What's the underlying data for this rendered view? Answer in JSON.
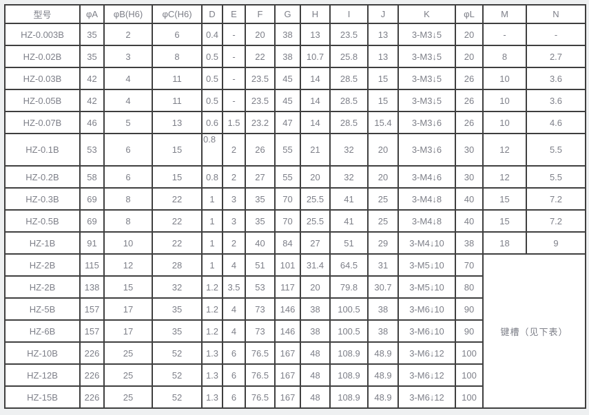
{
  "table": {
    "columns": [
      "型号",
      "φA",
      "φB(H6)",
      "φC(H6)",
      "D",
      "E",
      "F",
      "G",
      "H",
      "I",
      "J",
      "K",
      "φL",
      "M",
      "N"
    ],
    "rows": [
      [
        "HZ-0.003B",
        "35",
        "2",
        "6",
        "0.4",
        "-",
        "20",
        "38",
        "13",
        "23.5",
        "13",
        "3-M3↓5",
        "20",
        "-",
        "-"
      ],
      [
        "HZ-0.02B",
        "35",
        "3",
        "8",
        "0.5",
        "-",
        "22",
        "38",
        "10.7",
        "25.8",
        "13",
        "3-M3↓5",
        "20",
        "8",
        "2.7"
      ],
      [
        "HZ-0.03B",
        "42",
        "4",
        "11",
        "0.5",
        "-",
        "23.5",
        "45",
        "14",
        "28.5",
        "15",
        "3-M3↓5",
        "26",
        "10",
        "3.6"
      ],
      [
        "HZ-0.05B",
        "42",
        "4",
        "11",
        "0.5",
        "-",
        "23.5",
        "45",
        "14",
        "28.5",
        "15",
        "3-M3↓5",
        "26",
        "10",
        "3.6"
      ],
      [
        "HZ-0.07B",
        "46",
        "5",
        "13",
        "0.6",
        "1.5",
        "23.2",
        "47",
        "14",
        "28.5",
        "15.4",
        "3-M3↓6",
        "26",
        "10",
        "4.6"
      ],
      [
        "HZ-0.1B",
        "53",
        "6",
        "15",
        "0.8",
        "2",
        "26",
        "55",
        "21",
        "32",
        "20",
        "3-M3↓6",
        "30",
        "12",
        "5.5"
      ],
      [
        "HZ-0.2B",
        "58",
        "6",
        "15",
        "0.8",
        "2",
        "27",
        "55",
        "20",
        "32",
        "20",
        "3-M4↓6",
        "30",
        "12",
        "5.5"
      ],
      [
        "HZ-0.3B",
        "69",
        "8",
        "22",
        "1",
        "3",
        "35",
        "70",
        "25.5",
        "41",
        "25",
        "3-M4↓8",
        "40",
        "15",
        "7.2"
      ],
      [
        "HZ-0.5B",
        "69",
        "8",
        "22",
        "1",
        "3",
        "35",
        "70",
        "25.5",
        "41",
        "25",
        "3-M4↓8",
        "40",
        "15",
        "7.2"
      ],
      [
        "HZ-1B",
        "91",
        "10",
        "22",
        "1",
        "2",
        "40",
        "84",
        "27",
        "51",
        "29",
        "3-M4↓10",
        "38",
        "18",
        "9"
      ],
      [
        "HZ-2B",
        "115",
        "12",
        "28",
        "1",
        "4",
        "51",
        "101",
        "31.4",
        "64.5",
        "31",
        "3-M5↓10",
        "70"
      ],
      [
        "HZ-2B",
        "138",
        "15",
        "32",
        "1.2",
        "3.5",
        "53",
        "117",
        "20",
        "79.8",
        "30.7",
        "3-M5↓10",
        "80"
      ],
      [
        "HZ-5B",
        "157",
        "17",
        "35",
        "1.2",
        "4",
        "73",
        "146",
        "38",
        "100.5",
        "38",
        "3-M6↓10",
        "90"
      ],
      [
        "HZ-6B",
        "157",
        "17",
        "35",
        "1.2",
        "4",
        "73",
        "146",
        "38",
        "100.5",
        "38",
        "3-M6↓10",
        "90"
      ],
      [
        "HZ-10B",
        "226",
        "25",
        "52",
        "1.3",
        "6",
        "76.5",
        "167",
        "48",
        "108.9",
        "48.9",
        "3-M6↓12",
        "100"
      ],
      [
        "HZ-12B",
        "226",
        "25",
        "52",
        "1.3",
        "6",
        "76.5",
        "167",
        "48",
        "108.9",
        "48.9",
        "3-M6↓12",
        "100"
      ],
      [
        "HZ-15B",
        "226",
        "25",
        "52",
        "1.3",
        "6",
        "76.5",
        "167",
        "48",
        "108.9",
        "48.9",
        "3-M6↓12",
        "100"
      ]
    ],
    "keyway_note": {
      "label": "键槽（见下表）",
      "start_row_index": 10,
      "row_span": 7,
      "col_span": 2
    },
    "colors": {
      "border": "#3e3e3e",
      "text": "#7d7f88",
      "cell_background": "#ffffff",
      "page_background": "#eef0f1"
    }
  }
}
